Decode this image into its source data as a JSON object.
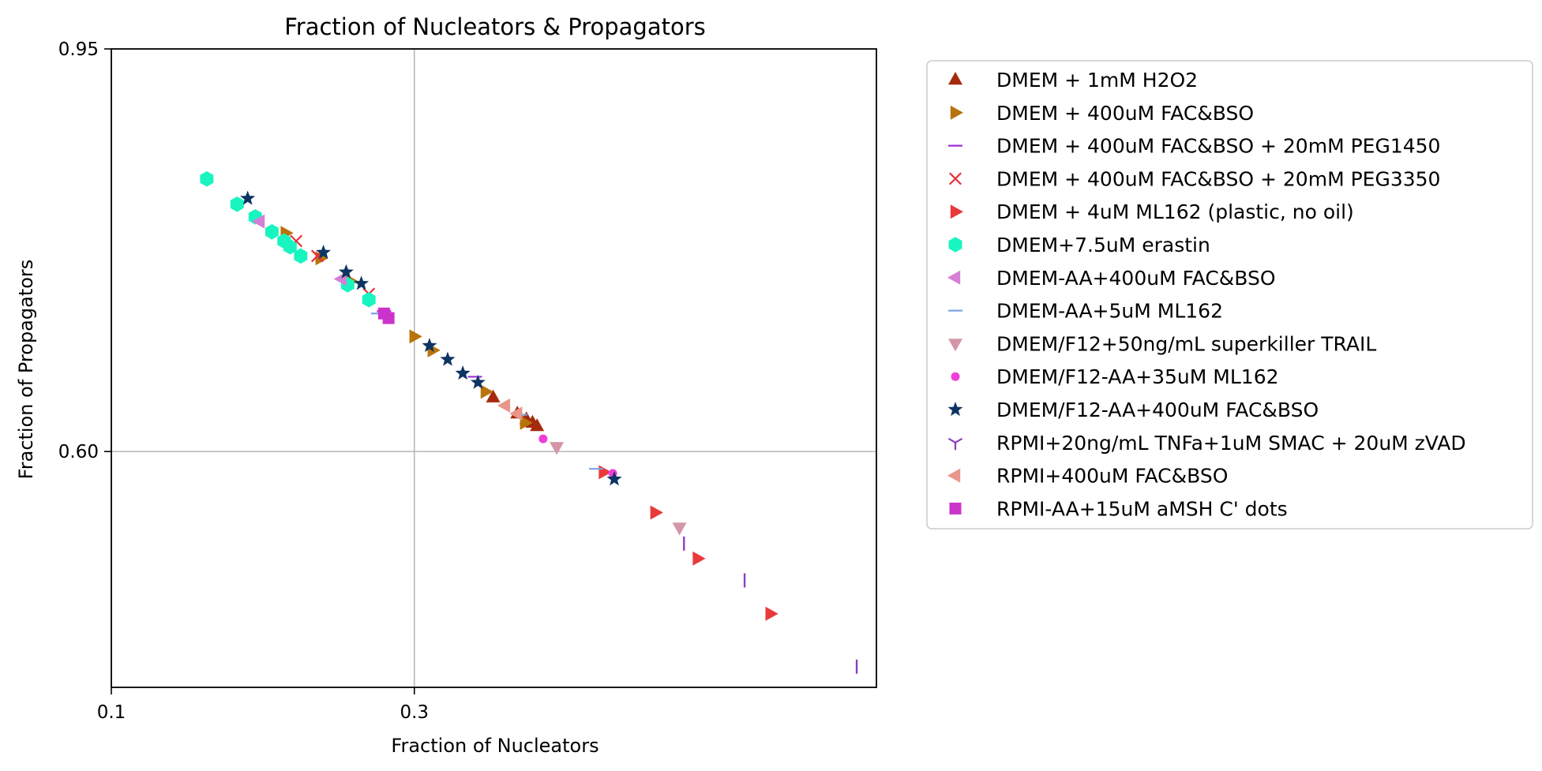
{
  "chart_data": {
    "type": "scatter",
    "title": "Fraction of Nucleators & Propagators",
    "xlabel": "Fraction of Nucleators",
    "ylabel": "Fraction of Propagators",
    "xlim": [
      0.1,
      0.605
    ],
    "ylim": [
      0.395,
      0.95
    ],
    "xticks": [
      0.1,
      0.3
    ],
    "xtick_labels": [
      "0.1",
      "0.3"
    ],
    "yticks": [
      0.6,
      0.95
    ],
    "ytick_labels": [
      "0.60",
      "0.95"
    ],
    "grid": true,
    "legend_position": "outside-right",
    "series": [
      {
        "name": "DMEM + 1mM H2O2",
        "marker": "triangle-up",
        "color": "#a52a0d",
        "x": [
          0.352,
          0.368,
          0.374,
          0.378,
          0.381
        ],
        "y": [
          0.647,
          0.633,
          0.628,
          0.625,
          0.622
        ]
      },
      {
        "name": "DMEM + 400uM FAC&BSO",
        "marker": "triangle-right",
        "color": "#b8730a",
        "x": [
          0.215,
          0.238,
          0.258,
          0.3,
          0.312,
          0.347,
          0.373
        ],
        "y": [
          0.79,
          0.768,
          0.748,
          0.7,
          0.688,
          0.652,
          0.625
        ]
      },
      {
        "name": "DMEM + 400uM FAC&BSO + 20mM PEG1450",
        "marker": "hline",
        "color": "#9b30d9",
        "x": [
          0.28,
          0.34
        ],
        "y": [
          0.722,
          0.665
        ]
      },
      {
        "name": "DMEM + 400uM FAC&BSO + 20mM PEG3350",
        "marker": "x",
        "color": "#e8303a",
        "x": [
          0.222,
          0.236,
          0.27
        ],
        "y": [
          0.783,
          0.77,
          0.737
        ]
      },
      {
        "name": "DMEM + 4uM ML162 (plastic, no oil)",
        "marker": "triangle-right",
        "color": "#e83a3a",
        "x": [
          0.425,
          0.459,
          0.487,
          0.535
        ],
        "y": [
          0.582,
          0.547,
          0.507,
          0.459
        ]
      },
      {
        "name": "DMEM+7.5uM erastin",
        "marker": "hexagon",
        "color": "#19f5c0",
        "x": [
          0.163,
          0.183,
          0.195,
          0.206,
          0.214,
          0.218,
          0.225,
          0.256,
          0.27
        ],
        "y": [
          0.837,
          0.815,
          0.804,
          0.791,
          0.783,
          0.778,
          0.77,
          0.745,
          0.732
        ]
      },
      {
        "name": "DMEM-AA+400uM FAC&BSO",
        "marker": "triangle-left",
        "color": "#d67fd6",
        "x": [
          0.198,
          0.252
        ],
        "y": [
          0.8,
          0.75
        ]
      },
      {
        "name": "DMEM-AA+5uM ML162",
        "marker": "hline",
        "color": "#7ea3e0",
        "x": [
          0.276,
          0.37,
          0.42
        ],
        "y": [
          0.72,
          0.632,
          0.585
        ]
      },
      {
        "name": "DMEM/F12+50ng/mL superkiller TRAIL",
        "marker": "triangle-down",
        "color": "#d496a7",
        "x": [
          0.394,
          0.475
        ],
        "y": [
          0.604,
          0.534
        ]
      },
      {
        "name": "DMEM/F12-AA+35uM ML162",
        "marker": "circle",
        "color": "#ee3ed8",
        "x": [
          0.385,
          0.431
        ],
        "y": [
          0.611,
          0.581
        ]
      },
      {
        "name": "DMEM/F12-AA+400uM FAC&BSO",
        "marker": "star",
        "color": "#0d3463",
        "x": [
          0.19,
          0.24,
          0.255,
          0.265,
          0.31,
          0.322,
          0.332,
          0.342,
          0.432
        ],
        "y": [
          0.82,
          0.773,
          0.756,
          0.746,
          0.692,
          0.68,
          0.668,
          0.66,
          0.576
        ]
      },
      {
        "name": "RPMI+20ng/mL TNFa+1uM SMAC + 20uM zVAD",
        "marker": "tri",
        "color": "#8a3fc0",
        "x": [
          0.478,
          0.518,
          0.592
        ],
        "y": [
          0.52,
          0.488,
          0.413
        ]
      },
      {
        "name": "RPMI+400uM FAC&BSO",
        "marker": "triangle-left",
        "color": "#e8968a",
        "x": [
          0.36,
          0.368
        ],
        "y": [
          0.64,
          0.633
        ]
      },
      {
        "name": "RPMI-AA+15uM aMSH C' dots",
        "marker": "square",
        "color": "#cc33cc",
        "x": [
          0.28,
          0.283
        ],
        "y": [
          0.72,
          0.716
        ]
      }
    ]
  }
}
